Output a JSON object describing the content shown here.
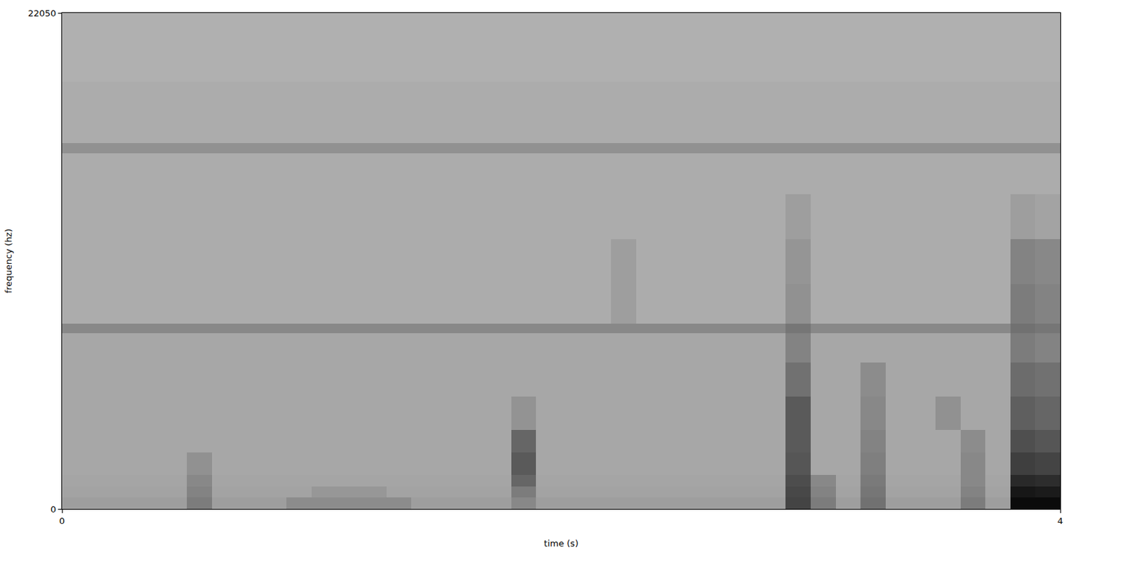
{
  "chart_data": {
    "type": "heatmap",
    "x_label": "time (s)",
    "y_label": "frequency (hz)",
    "xlim": [
      0,
      4
    ],
    "ylim": [
      0,
      22050
    ],
    "xticks": [
      0,
      4
    ],
    "yticks": [
      0,
      22050
    ],
    "zlim": [
      0,
      100
    ],
    "x": [
      0,
      0.1,
      0.2,
      0.3,
      0.4,
      0.5,
      0.6,
      0.7,
      0.8,
      0.9,
      1.0,
      1.1,
      1.2,
      1.3,
      1.4,
      1.5,
      1.6,
      1.7,
      1.8,
      1.9,
      2.0,
      2.1,
      2.2,
      2.3,
      2.4,
      2.5,
      2.6,
      2.7,
      2.8,
      2.9,
      3.0,
      3.1,
      3.2,
      3.3,
      3.4,
      3.5,
      3.6,
      3.7,
      3.8,
      3.9,
      4.0
    ],
    "y": [
      0,
      500,
      1000,
      1500,
      2500,
      3500,
      5000,
      6500,
      7800,
      8250,
      10000,
      12000,
      14000,
      15800,
      16250,
      19000,
      22050
    ],
    "z": [
      [
        30,
        30,
        30,
        30,
        30,
        45,
        30,
        30,
        30,
        38,
        38,
        38,
        38,
        38,
        30,
        30,
        30,
        30,
        40,
        30,
        30,
        30,
        30,
        30,
        30,
        30,
        30,
        30,
        30,
        70,
        45,
        30,
        50,
        30,
        30,
        30,
        45,
        30,
        95,
        95
      ],
      [
        28,
        28,
        28,
        28,
        28,
        42,
        28,
        28,
        28,
        28,
        33,
        33,
        33,
        28,
        28,
        28,
        28,
        28,
        45,
        28,
        28,
        28,
        28,
        28,
        28,
        28,
        28,
        28,
        28,
        68,
        42,
        28,
        48,
        28,
        28,
        28,
        42,
        28,
        90,
        88
      ],
      [
        27,
        27,
        27,
        27,
        27,
        40,
        27,
        27,
        27,
        27,
        27,
        27,
        27,
        27,
        27,
        27,
        27,
        27,
        55,
        27,
        27,
        27,
        27,
        27,
        27,
        27,
        27,
        27,
        27,
        66,
        40,
        27,
        46,
        27,
        27,
        27,
        40,
        27,
        82,
        80
      ],
      [
        26,
        26,
        26,
        26,
        26,
        36,
        26,
        26,
        26,
        26,
        26,
        26,
        26,
        26,
        26,
        26,
        26,
        26,
        60,
        26,
        26,
        26,
        26,
        26,
        26,
        26,
        26,
        26,
        26,
        62,
        26,
        26,
        44,
        26,
        26,
        26,
        40,
        26,
        72,
        70
      ],
      [
        26,
        26,
        26,
        26,
        26,
        26,
        26,
        26,
        26,
        26,
        26,
        26,
        26,
        26,
        26,
        26,
        26,
        26,
        55,
        26,
        26,
        26,
        26,
        26,
        26,
        26,
        26,
        26,
        26,
        60,
        26,
        26,
        42,
        26,
        26,
        26,
        38,
        26,
        65,
        62
      ],
      [
        26,
        26,
        26,
        26,
        26,
        26,
        26,
        26,
        26,
        26,
        26,
        26,
        26,
        26,
        26,
        26,
        26,
        26,
        35,
        26,
        26,
        26,
        26,
        26,
        26,
        26,
        26,
        26,
        26,
        60,
        26,
        26,
        40,
        26,
        26,
        36,
        26,
        26,
        58,
        55
      ],
      [
        26,
        26,
        26,
        26,
        26,
        26,
        26,
        26,
        26,
        26,
        26,
        26,
        26,
        26,
        26,
        26,
        26,
        26,
        26,
        26,
        26,
        26,
        26,
        26,
        26,
        26,
        26,
        26,
        26,
        50,
        26,
        26,
        38,
        26,
        26,
        26,
        26,
        26,
        52,
        50
      ],
      [
        26,
        26,
        26,
        26,
        26,
        26,
        26,
        26,
        26,
        26,
        26,
        26,
        26,
        26,
        26,
        26,
        26,
        26,
        26,
        26,
        26,
        26,
        26,
        26,
        26,
        26,
        26,
        26,
        26,
        42,
        26,
        26,
        26,
        26,
        26,
        26,
        26,
        26,
        45,
        42
      ],
      [
        40,
        40,
        40,
        40,
        40,
        40,
        40,
        40,
        40,
        40,
        40,
        40,
        40,
        40,
        40,
        40,
        40,
        40,
        40,
        40,
        40,
        40,
        40,
        40,
        40,
        40,
        40,
        40,
        40,
        48,
        40,
        40,
        40,
        40,
        40,
        40,
        40,
        40,
        50,
        48
      ],
      [
        24,
        24,
        24,
        24,
        24,
        24,
        24,
        24,
        24,
        24,
        24,
        24,
        24,
        24,
        24,
        24,
        24,
        24,
        24,
        24,
        24,
        24,
        30,
        24,
        24,
        24,
        24,
        24,
        24,
        36,
        24,
        24,
        24,
        24,
        24,
        24,
        24,
        24,
        45,
        42
      ],
      [
        24,
        24,
        24,
        24,
        24,
        24,
        24,
        24,
        24,
        24,
        24,
        24,
        24,
        24,
        24,
        24,
        24,
        24,
        24,
        24,
        24,
        24,
        30,
        24,
        24,
        24,
        24,
        24,
        24,
        34,
        24,
        24,
        24,
        24,
        24,
        24,
        24,
        24,
        42,
        40
      ],
      [
        24,
        24,
        24,
        24,
        24,
        24,
        24,
        24,
        24,
        24,
        24,
        24,
        24,
        24,
        24,
        24,
        24,
        24,
        24,
        24,
        24,
        24,
        24,
        24,
        24,
        24,
        24,
        24,
        24,
        30,
        24,
        24,
        24,
        24,
        24,
        24,
        24,
        24,
        30,
        28
      ],
      [
        24,
        24,
        24,
        24,
        24,
        24,
        24,
        24,
        24,
        24,
        24,
        24,
        24,
        24,
        24,
        24,
        24,
        24,
        24,
        24,
        24,
        24,
        24,
        24,
        24,
        24,
        24,
        24,
        24,
        24,
        24,
        24,
        24,
        24,
        24,
        24,
        24,
        24,
        24,
        24
      ],
      [
        36,
        36,
        36,
        36,
        36,
        36,
        36,
        36,
        36,
        36,
        36,
        36,
        36,
        36,
        36,
        36,
        36,
        36,
        36,
        36,
        36,
        36,
        36,
        36,
        36,
        36,
        36,
        36,
        36,
        36,
        36,
        36,
        36,
        36,
        36,
        36,
        36,
        36,
        36,
        36
      ],
      [
        24,
        24,
        24,
        24,
        24,
        24,
        24,
        24,
        24,
        24,
        24,
        24,
        24,
        24,
        24,
        24,
        24,
        24,
        24,
        24,
        24,
        24,
        24,
        24,
        24,
        24,
        24,
        24,
        24,
        24,
        24,
        24,
        24,
        24,
        24,
        24,
        24,
        24,
        24,
        24
      ],
      [
        22,
        22,
        22,
        22,
        22,
        22,
        22,
        22,
        22,
        22,
        22,
        22,
        22,
        22,
        22,
        22,
        22,
        22,
        22,
        22,
        22,
        22,
        22,
        22,
        22,
        22,
        22,
        22,
        22,
        22,
        22,
        22,
        22,
        22,
        22,
        22,
        22,
        22,
        22,
        22
      ]
    ]
  }
}
